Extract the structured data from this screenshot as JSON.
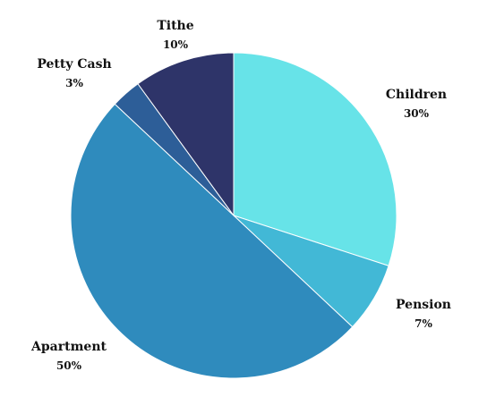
{
  "chart_data": {
    "type": "pie",
    "title": "",
    "slices": [
      {
        "name": "Children",
        "value": 30,
        "label": "30%",
        "color": "#67E3E8"
      },
      {
        "name": "Pension",
        "value": 7,
        "label": "7%",
        "color": "#42B8D6"
      },
      {
        "name": "Apartment",
        "value": 50,
        "label": "50%",
        "color": "#2F8BBD"
      },
      {
        "name": "Petty Cash",
        "value": 3,
        "label": "3%",
        "color": "#2D5E98"
      },
      {
        "name": "Tithe",
        "value": 10,
        "label": "10%",
        "color": "#2E3469"
      }
    ],
    "start_angle": "12 o'clock",
    "direction": "clockwise",
    "legend": "none"
  }
}
